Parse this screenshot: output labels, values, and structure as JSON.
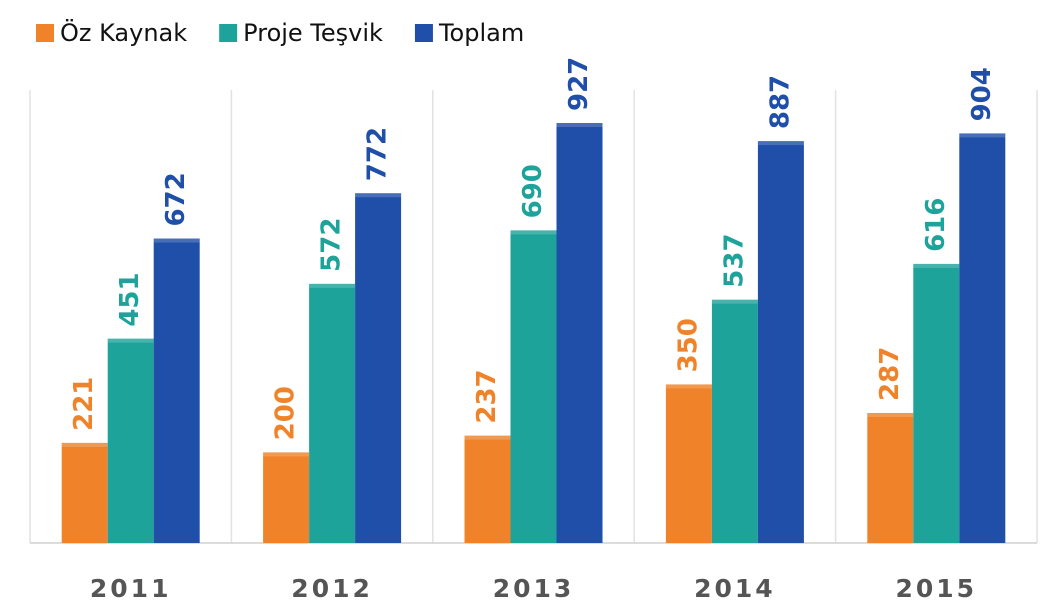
{
  "chart_data": {
    "type": "bar",
    "categories": [
      "2011",
      "2012",
      "2013",
      "2014",
      "2015"
    ],
    "series": [
      {
        "name": "Öz Kaynak",
        "color": "#f0832a",
        "values": [
          221,
          200,
          237,
          350,
          287
        ]
      },
      {
        "name": "Proje Teşvik",
        "color": "#1ea39a",
        "values": [
          451,
          572,
          690,
          537,
          616
        ]
      },
      {
        "name": "Toplam",
        "color": "#1f4fa8",
        "values": [
          672,
          772,
          927,
          887,
          904
        ]
      }
    ],
    "legend": "top-left"
  }
}
